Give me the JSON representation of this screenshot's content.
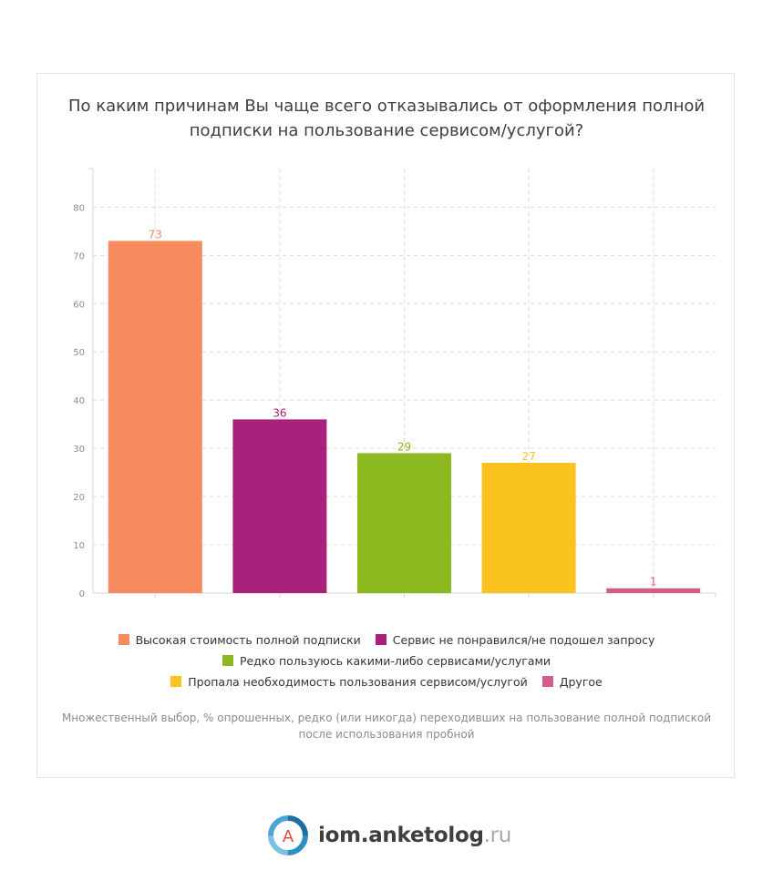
{
  "chart_data": {
    "type": "bar",
    "title_lines": [
      "По каким причинам Вы чаще всего отказывались от оформления полной",
      "подписки на пользование сервисом/услугой?"
    ],
    "categories": [
      "Высокая стоимость полной подписки",
      "Сервис не понравился/не подошел запросу",
      "Редко пользуюсь какими-либо сервисами/услугами",
      "Пропала необходимость пользования сервисом/услугой",
      "Другое"
    ],
    "values": [
      73,
      36,
      29,
      27,
      1
    ],
    "colors": [
      "#f58b5e",
      "#a8217b",
      "#8db920",
      "#fbc31d",
      "#d45c8a"
    ],
    "yticks": [
      0,
      10,
      20,
      30,
      40,
      50,
      60,
      70,
      80
    ],
    "ylim": [
      0,
      88
    ],
    "grid": true,
    "legend_position": "bottom",
    "xlabel": "",
    "ylabel": ""
  },
  "note": "Множественный выбор, % опрошенных, редко (или никогда) переходивших на пользование полной подпиской после использования пробной",
  "footer": {
    "logo_letter": "А",
    "brand": "iom.anketolog",
    "tld": ".ru"
  }
}
